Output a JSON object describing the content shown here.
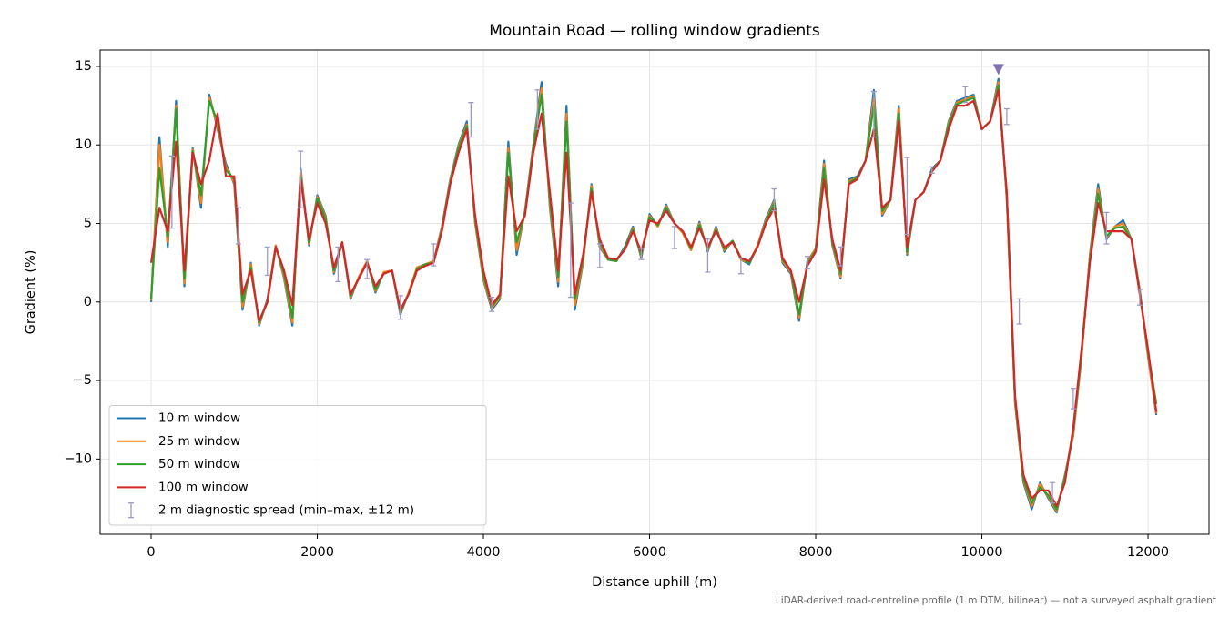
{
  "chart_data": {
    "type": "line",
    "title": "Mountain Road — rolling window gradients",
    "x_label": "Distance uphill (m)",
    "y_label": "Gradient (%)",
    "footnote": "LiDAR-derived road-centreline profile (1 m DTM, bilinear) — not a surveyed asphalt gradient",
    "xlim": [
      -614,
      12734
    ],
    "ylim": [
      -14.79,
      16.04
    ],
    "xticks": [
      0,
      2000,
      4000,
      6000,
      8000,
      10000,
      12000
    ],
    "yticks": [
      {
        "value": -10,
        "label": "−10"
      },
      {
        "value": -5,
        "label": "−5"
      },
      0,
      5,
      10,
      15
    ],
    "grid": true,
    "legend": "lower left",
    "x": [
      0,
      100,
      200,
      300,
      400,
      500,
      600,
      700,
      800,
      900,
      1000,
      1100,
      1200,
      1300,
      1400,
      1500,
      1600,
      1700,
      1800,
      1900,
      2000,
      2100,
      2200,
      2300,
      2400,
      2500,
      2600,
      2700,
      2800,
      2900,
      3000,
      3100,
      3200,
      3300,
      3400,
      3500,
      3600,
      3700,
      3800,
      3900,
      4000,
      4100,
      4200,
      4300,
      4400,
      4500,
      4600,
      4700,
      4800,
      4900,
      5000,
      5100,
      5200,
      5300,
      5400,
      5500,
      5600,
      5700,
      5800,
      5900,
      6000,
      6100,
      6200,
      6300,
      6400,
      6500,
      6600,
      6700,
      6800,
      6900,
      7000,
      7100,
      7200,
      7300,
      7400,
      7500,
      7600,
      7700,
      7800,
      7900,
      8000,
      8100,
      8200,
      8300,
      8400,
      8500,
      8600,
      8700,
      8800,
      8900,
      9000,
      9100,
      9200,
      9300,
      9400,
      9500,
      9600,
      9700,
      9800,
      9900,
      10000,
      10100,
      10200,
      10300,
      10400,
      10500,
      10600,
      10700,
      10800,
      10900,
      11000,
      11100,
      11200,
      11300,
      11400,
      11500,
      11600,
      11700,
      11800,
      11900,
      12000,
      12100
    ],
    "series": [
      {
        "name": "10 m window",
        "color": "#1f77b4",
        "values": [
          0.0,
          10.5,
          3.5,
          12.8,
          1.0,
          9.8,
          6.0,
          13.2,
          11.0,
          8.8,
          7.5,
          -0.5,
          2.5,
          -1.5,
          0.2,
          3.6,
          1.5,
          -1.5,
          8.5,
          3.6,
          6.8,
          5.5,
          1.8,
          3.8,
          0.2,
          1.6,
          2.6,
          0.6,
          1.9,
          2.0,
          -0.8,
          0.6,
          2.2,
          2.4,
          2.6,
          4.8,
          7.8,
          10.0,
          11.5,
          5.0,
          1.4,
          -0.5,
          0.2,
          10.2,
          3.0,
          5.8,
          10.0,
          14.0,
          6.0,
          1.0,
          12.5,
          -0.5,
          2.5,
          7.5,
          3.5,
          2.7,
          2.6,
          3.5,
          4.8,
          2.8,
          5.6,
          4.8,
          6.2,
          5.0,
          4.4,
          3.3,
          5.1,
          3.2,
          4.8,
          3.2,
          3.9,
          2.7,
          2.4,
          3.6,
          5.3,
          6.5,
          2.5,
          1.8,
          -1.2,
          2.6,
          3.4,
          9.0,
          3.6,
          1.5,
          7.8,
          8.0,
          9.0,
          13.5,
          5.5,
          6.5,
          12.5,
          3.0,
          6.5,
          7.0,
          8.5,
          9.0,
          11.5,
          12.8,
          13.0,
          13.2,
          11.0,
          11.5,
          14.2,
          6.5,
          -6.5,
          -11.5,
          -13.2,
          -11.5,
          -12.5,
          -13.4,
          -11.0,
          -8.5,
          -3.5,
          3.0,
          7.5,
          4.0,
          4.8,
          5.2,
          4.0,
          0.8,
          -3.5,
          -7.2
        ]
      },
      {
        "name": "25 m window",
        "color": "#ff7f0e",
        "values": [
          0.1,
          10.0,
          3.8,
          12.5,
          1.2,
          9.7,
          6.3,
          13.0,
          11.2,
          8.6,
          7.6,
          -0.3,
          2.4,
          -1.4,
          0.1,
          3.6,
          1.6,
          -1.3,
          8.3,
          3.7,
          6.7,
          5.4,
          1.9,
          3.8,
          0.3,
          1.6,
          2.6,
          0.7,
          1.9,
          2.0,
          -0.7,
          0.6,
          2.2,
          2.4,
          2.6,
          4.7,
          7.7,
          9.9,
          11.3,
          5.1,
          1.5,
          -0.4,
          0.3,
          9.8,
          3.3,
          5.7,
          9.9,
          13.6,
          6.2,
          1.3,
          12.0,
          -0.2,
          2.6,
          7.4,
          3.6,
          2.7,
          2.6,
          3.4,
          4.7,
          2.9,
          5.5,
          4.8,
          6.1,
          5.0,
          4.4,
          3.3,
          5.0,
          3.3,
          4.7,
          3.3,
          3.9,
          2.7,
          2.5,
          3.6,
          5.2,
          6.4,
          2.6,
          1.9,
          -1.0,
          2.5,
          3.4,
          8.8,
          3.7,
          1.6,
          7.7,
          7.9,
          9.0,
          13.0,
          5.6,
          6.5,
          12.3,
          3.1,
          6.5,
          7.0,
          8.4,
          9.0,
          11.4,
          12.7,
          12.9,
          13.1,
          11.0,
          11.5,
          14.0,
          6.6,
          -6.4,
          -11.4,
          -13.0,
          -11.6,
          -12.4,
          -13.3,
          -11.1,
          -8.4,
          -3.4,
          2.9,
          7.2,
          4.1,
          4.8,
          5.0,
          4.0,
          0.7,
          -3.4,
          -7.1
        ]
      },
      {
        "name": "50 m window",
        "color": "#2ca02c",
        "values": [
          0.2,
          8.5,
          4.2,
          12.3,
          1.5,
          9.6,
          6.8,
          12.8,
          11.5,
          8.4,
          7.8,
          0.0,
          2.2,
          -1.3,
          0.0,
          3.5,
          1.8,
          -1.0,
          8.0,
          3.8,
          6.6,
          5.3,
          2.0,
          3.8,
          0.4,
          1.5,
          2.5,
          0.8,
          1.8,
          2.0,
          -0.6,
          0.5,
          2.1,
          2.4,
          2.5,
          4.6,
          7.6,
          9.8,
          11.2,
          5.3,
          1.7,
          -0.3,
          0.4,
          9.5,
          3.8,
          5.6,
          9.8,
          13.2,
          6.5,
          1.6,
          11.5,
          0.2,
          2.8,
          7.2,
          3.8,
          2.7,
          2.6,
          3.4,
          4.6,
          3.0,
          5.4,
          4.9,
          6.0,
          5.0,
          4.5,
          3.4,
          4.9,
          3.4,
          4.6,
          3.4,
          3.9,
          2.8,
          2.5,
          3.5,
          5.1,
          6.3,
          2.7,
          2.0,
          -0.8,
          2.4,
          3.3,
          8.5,
          3.8,
          1.8,
          7.6,
          7.9,
          9.0,
          12.5,
          5.8,
          6.5,
          12.0,
          3.2,
          6.5,
          7.0,
          8.4,
          9.0,
          11.3,
          12.6,
          12.8,
          13.0,
          11.0,
          11.5,
          13.8,
          6.8,
          -6.2,
          -11.3,
          -12.8,
          -11.8,
          -12.3,
          -13.2,
          -11.2,
          -8.2,
          -3.2,
          2.7,
          6.9,
          4.2,
          4.7,
          4.8,
          4.0,
          0.6,
          -3.2,
          -6.5
        ]
      },
      {
        "name": "100 m window",
        "color": "#d62728",
        "values": [
          2.5,
          6.0,
          4.5,
          10.2,
          2.0,
          9.5,
          7.5,
          9.0,
          12.0,
          8.0,
          8.0,
          0.5,
          2.0,
          -1.2,
          0.0,
          3.5,
          2.0,
          -0.2,
          7.8,
          4.0,
          6.3,
          5.0,
          2.2,
          3.8,
          0.5,
          1.5,
          2.5,
          1.0,
          1.8,
          2.0,
          -0.5,
          0.5,
          2.0,
          2.3,
          2.5,
          4.5,
          7.5,
          9.5,
          11.0,
          5.5,
          2.0,
          -0.2,
          0.5,
          8.0,
          4.5,
          5.5,
          9.5,
          12.0,
          7.0,
          2.0,
          9.5,
          0.5,
          3.0,
          7.0,
          4.0,
          2.8,
          2.7,
          3.3,
          4.5,
          3.2,
          5.2,
          5.0,
          5.8,
          5.0,
          4.5,
          3.5,
          4.7,
          3.5,
          4.5,
          3.5,
          3.8,
          2.8,
          2.6,
          3.5,
          5.0,
          6.0,
          2.8,
          2.0,
          0.0,
          2.3,
          3.2,
          7.8,
          4.0,
          2.0,
          7.5,
          7.8,
          9.0,
          11.0,
          6.0,
          6.5,
          11.5,
          3.5,
          6.5,
          7.0,
          8.3,
          9.0,
          11.0,
          12.5,
          12.5,
          12.8,
          11.0,
          11.5,
          13.5,
          7.0,
          -6.0,
          -11.0,
          -12.5,
          -12.0,
          -12.0,
          -13.0,
          -11.5,
          -8.0,
          -3.0,
          2.5,
          6.3,
          4.5,
          4.5,
          4.5,
          4.0,
          0.5,
          -3.0,
          -7.0
        ]
      }
    ],
    "errorbars": {
      "name": "2 m diagnostic spread (min–max, ±12 m)",
      "color": "#9e9ac8",
      "x": [
        250,
        1050,
        1400,
        1800,
        2250,
        2600,
        3000,
        3400,
        3850,
        4100,
        4650,
        5050,
        5400,
        5900,
        6300,
        6700,
        7100,
        7500,
        7900,
        8300,
        8700,
        9100,
        9400,
        9800,
        10300,
        10450,
        10850,
        11100,
        11500,
        11900
      ],
      "low": [
        4.7,
        3.7,
        1.7,
        6.0,
        1.3,
        1.5,
        -1.1,
        2.3,
        10.5,
        -0.6,
        11.0,
        0.3,
        2.2,
        2.7,
        3.4,
        1.9,
        1.8,
        5.8,
        2.1,
        2.3,
        10.5,
        4.3,
        8.2,
        12.7,
        11.3,
        -1.4,
        -12.8,
        -6.8,
        3.7,
        -0.2
      ],
      "high": [
        9.3,
        6.0,
        3.5,
        9.6,
        3.5,
        2.7,
        0.4,
        3.7,
        12.7,
        0.3,
        13.5,
        6.3,
        3.7,
        3.4,
        4.8,
        4.0,
        2.8,
        7.2,
        2.9,
        3.5,
        13.4,
        9.2,
        8.6,
        13.7,
        12.3,
        0.2,
        -11.5,
        -5.5,
        5.7,
        0.8
      ]
    },
    "peak": {
      "x": 10200,
      "y": 14.8,
      "color": "#8172b2"
    }
  }
}
